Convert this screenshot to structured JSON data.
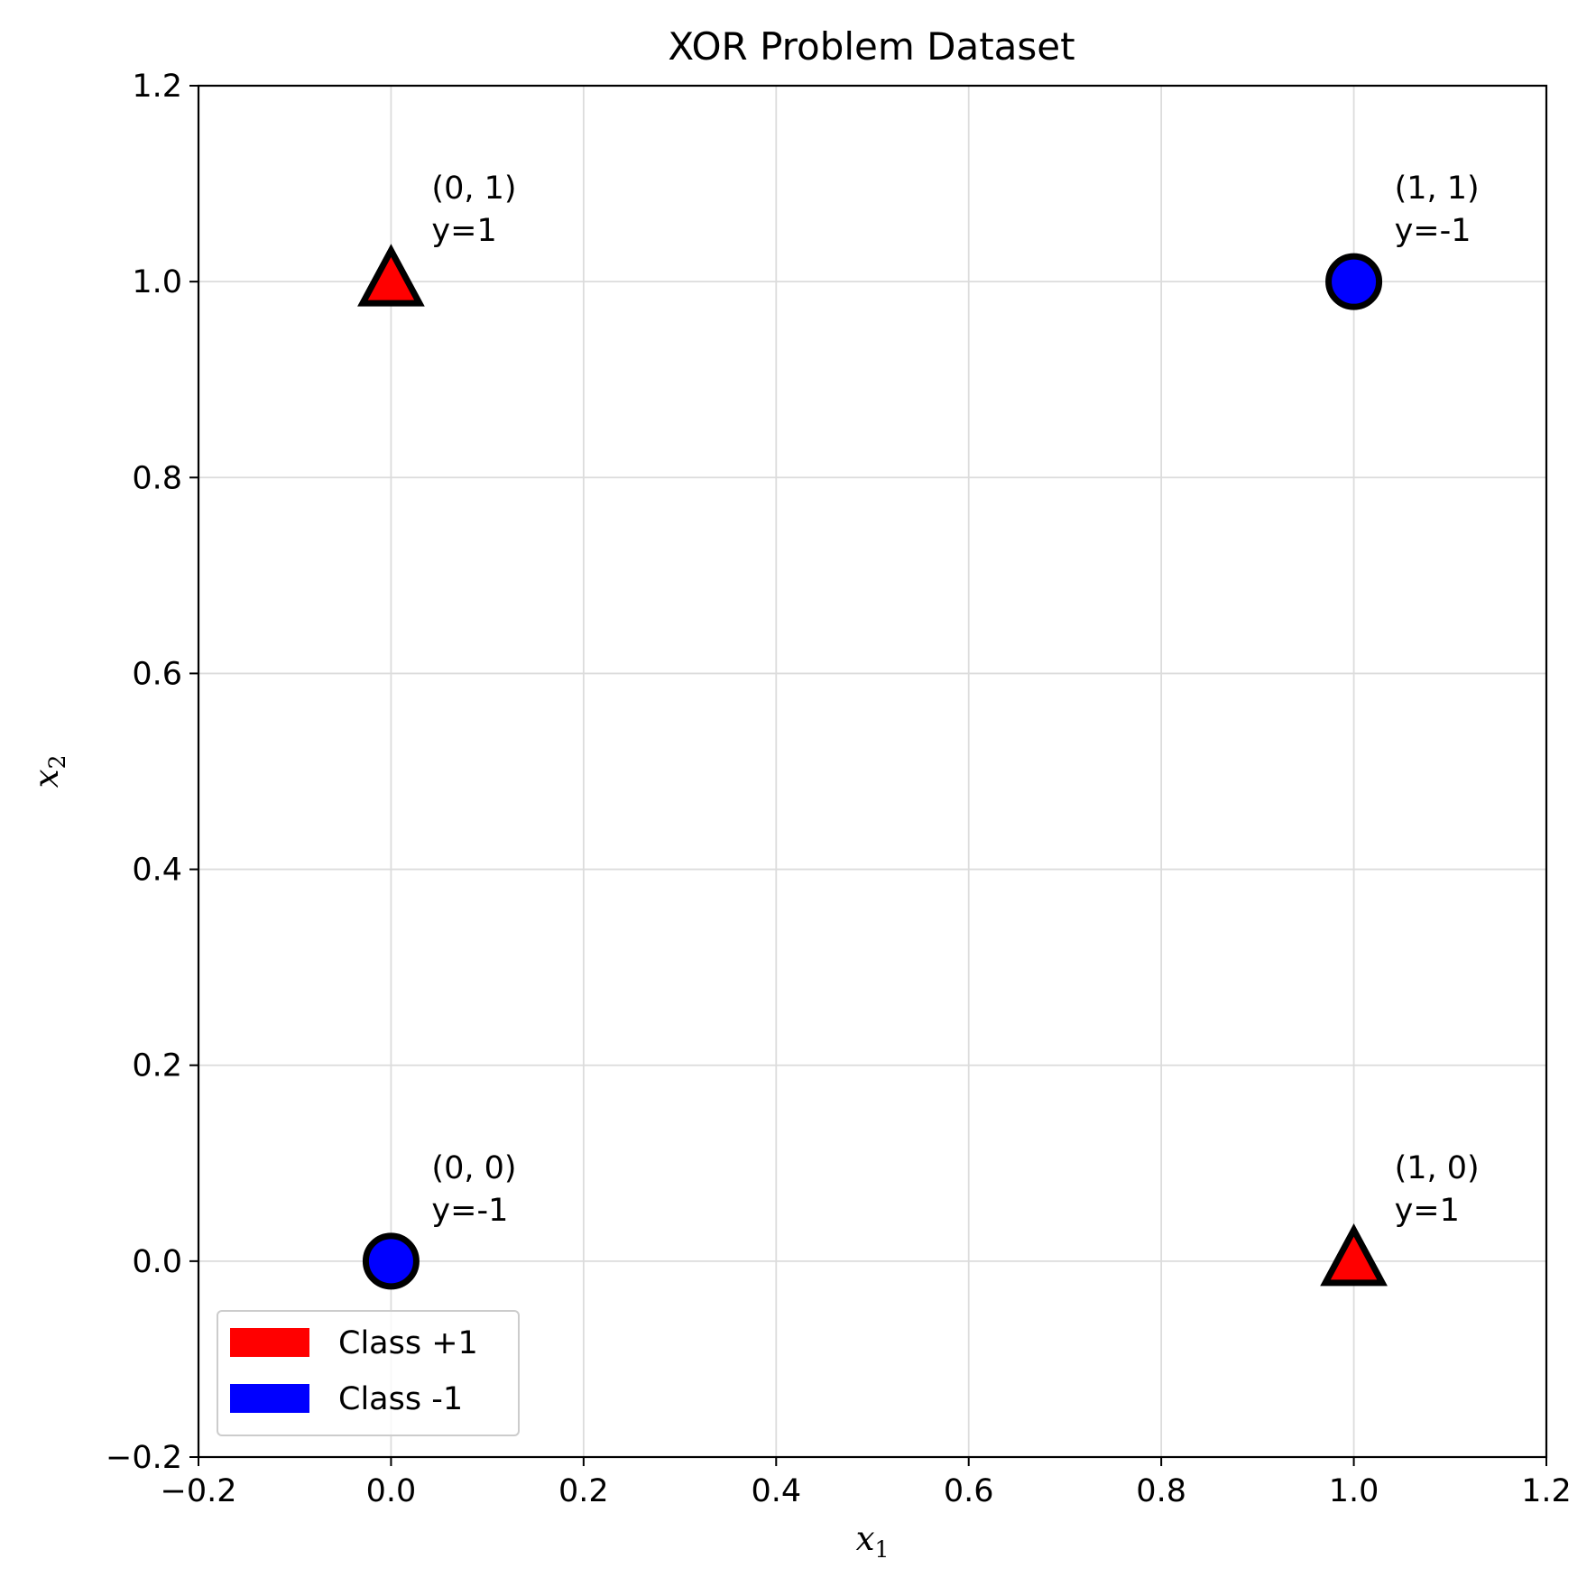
{
  "chart_data": {
    "type": "scatter",
    "title": "XOR Problem Dataset",
    "xlabel": {
      "base": "x",
      "sub": "1"
    },
    "ylabel": {
      "base": "x",
      "sub": "2"
    },
    "xlim": [
      -0.2,
      1.2
    ],
    "ylim": [
      -0.2,
      1.2
    ],
    "xticks": [
      -0.2,
      0.0,
      0.2,
      0.4,
      0.6,
      0.8,
      1.0,
      1.2
    ],
    "yticks": [
      -0.2,
      0.0,
      0.2,
      0.4,
      0.6,
      0.8,
      1.0,
      1.2
    ],
    "xtick_labels": [
      "−0.2",
      "0.0",
      "0.2",
      "0.4",
      "0.6",
      "0.8",
      "1.0",
      "1.2"
    ],
    "ytick_labels": [
      "−0.2",
      "0.0",
      "0.2",
      "0.4",
      "0.6",
      "0.8",
      "1.0",
      "1.2"
    ],
    "grid": true,
    "legend_position": "lower-left",
    "series": [
      {
        "name": "Class +1",
        "color": "#ff0000",
        "marker": "triangle",
        "points": [
          {
            "x": 0,
            "y": 1,
            "label_line1": "(0, 1)",
            "label_line2": "y=1"
          },
          {
            "x": 1,
            "y": 0,
            "label_line1": "(1, 0)",
            "label_line2": "y=1"
          }
        ]
      },
      {
        "name": "Class -1",
        "color": "#0000ff",
        "marker": "circle",
        "points": [
          {
            "x": 0,
            "y": 0,
            "label_line1": "(0, 0)",
            "label_line2": "y=-1"
          },
          {
            "x": 1,
            "y": 1,
            "label_line1": "(1, 1)",
            "label_line2": "y=-1"
          }
        ]
      }
    ]
  }
}
